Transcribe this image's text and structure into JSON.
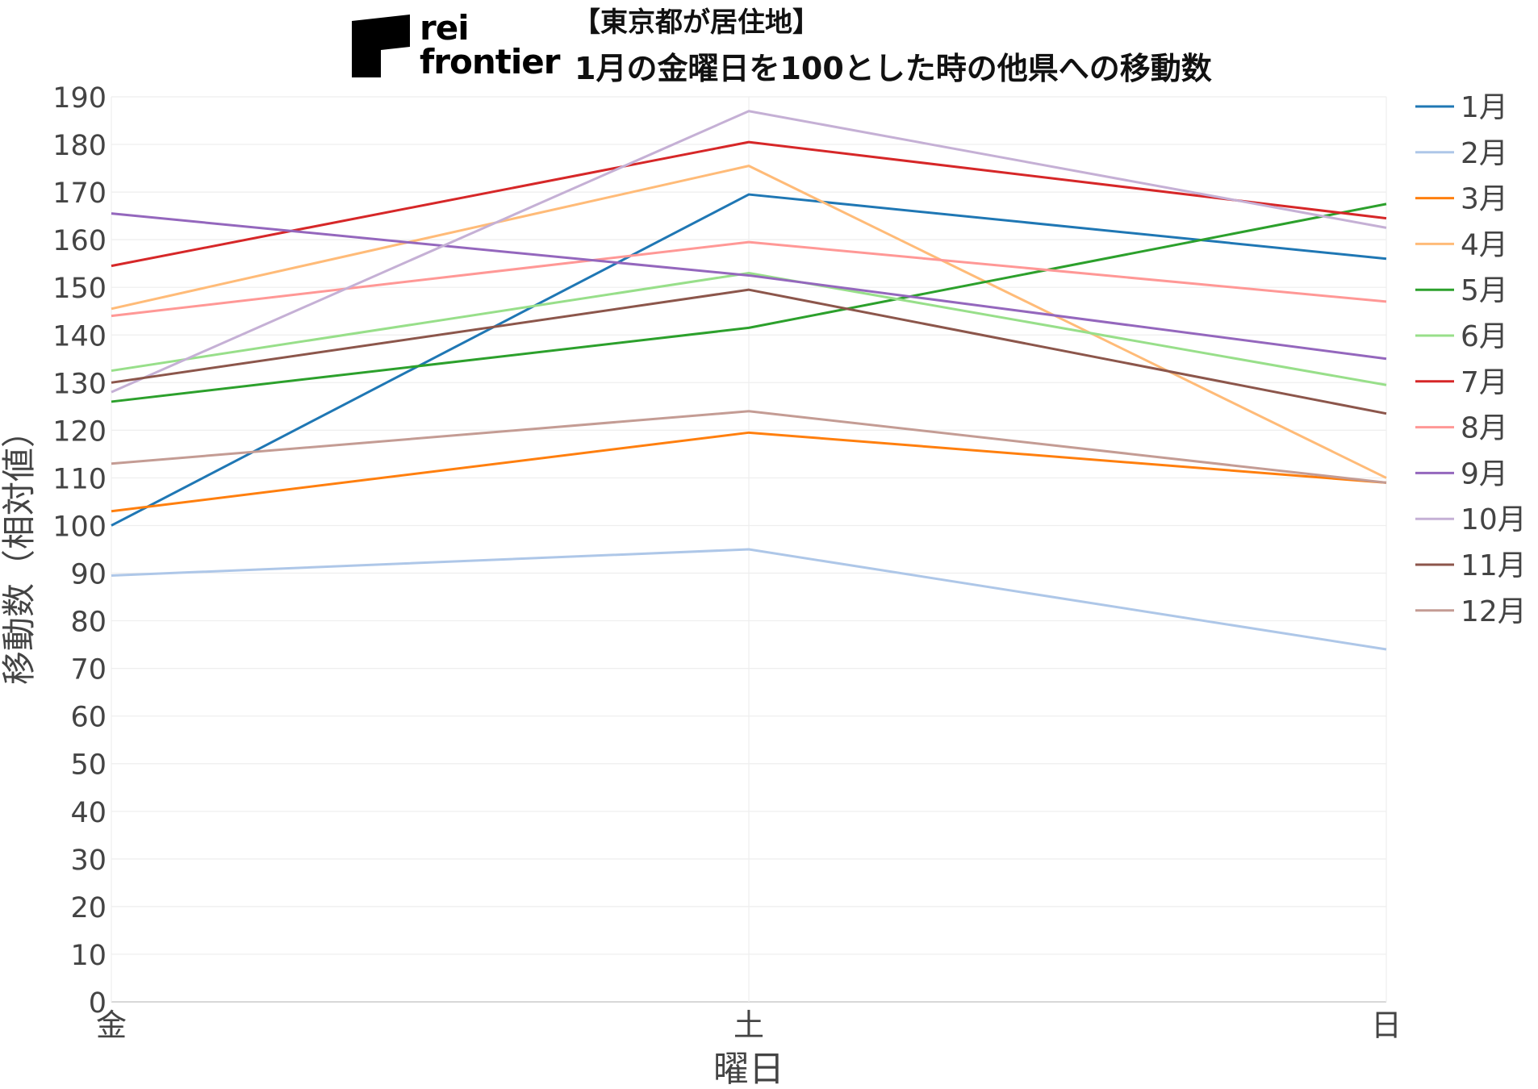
{
  "logo": {
    "line1": "rei",
    "line2": "frontier"
  },
  "title_lines": [
    "【東京都が居住地】",
    "1月の金曜日を100とした時の他県への移動数"
  ],
  "chart_data": {
    "type": "line",
    "title": "【東京都が居住地】 1月の金曜日を100とした時の他県への移動数",
    "xlabel": "曜日",
    "ylabel": "移動数（相対値）",
    "categories": [
      "金",
      "土",
      "日"
    ],
    "ylim": [
      0,
      190
    ],
    "yticks": [
      0,
      10,
      20,
      30,
      40,
      50,
      60,
      70,
      80,
      90,
      100,
      110,
      120,
      130,
      140,
      150,
      160,
      170,
      180,
      190
    ],
    "grid": true,
    "legend_position": "right",
    "series": [
      {
        "name": "1月",
        "color": "#1f77b4",
        "values": [
          100,
          169.5,
          156
        ]
      },
      {
        "name": "2月",
        "color": "#aec7e8",
        "values": [
          89.5,
          95,
          74
        ]
      },
      {
        "name": "3月",
        "color": "#ff7f0e",
        "values": [
          103,
          119.5,
          109
        ]
      },
      {
        "name": "4月",
        "color": "#ffbb78",
        "values": [
          145.5,
          175.5,
          110
        ]
      },
      {
        "name": "5月",
        "color": "#2ca02c",
        "values": [
          126,
          141.5,
          167.5
        ]
      },
      {
        "name": "6月",
        "color": "#98df8a",
        "values": [
          132.5,
          153,
          129.5
        ]
      },
      {
        "name": "7月",
        "color": "#d62728",
        "values": [
          154.5,
          180.5,
          164.5
        ]
      },
      {
        "name": "8月",
        "color": "#ff9896",
        "values": [
          144,
          159.5,
          147
        ]
      },
      {
        "name": "9月",
        "color": "#9467bd",
        "values": [
          165.5,
          152.5,
          135
        ]
      },
      {
        "name": "10月",
        "color": "#c5b0d5",
        "values": [
          128,
          187,
          162.5
        ]
      },
      {
        "name": "11月",
        "color": "#8c564b",
        "values": [
          130,
          149.5,
          123.5
        ]
      },
      {
        "name": "12月",
        "color": "#c49c94",
        "values": [
          113,
          124,
          109
        ]
      }
    ]
  }
}
